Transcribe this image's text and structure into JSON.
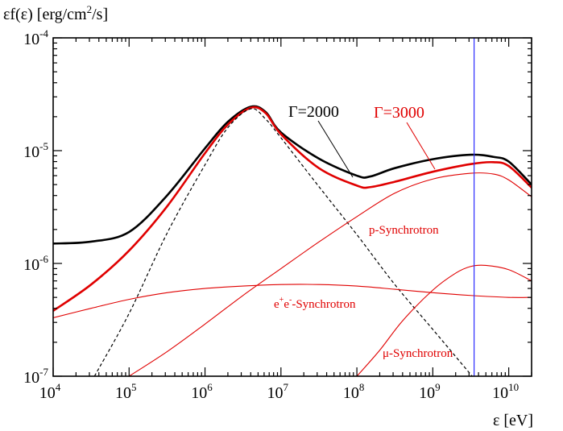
{
  "chart_data": {
    "type": "line",
    "title": "",
    "ylabel": {
      "prefix": "εf(ε) [erg/cm",
      "sup": "2",
      "suffix": "/s]"
    },
    "xlabel": "ε [eV]",
    "xscale": "log",
    "yscale": "log",
    "xlim": [
      10000,
      20000000000
    ],
    "ylim": [
      1e-07,
      0.0001
    ],
    "grid": false,
    "x_ticks": [
      {
        "base": "10",
        "exp": "4"
      },
      {
        "base": "10",
        "exp": "5"
      },
      {
        "base": "10",
        "exp": "6"
      },
      {
        "base": "10",
        "exp": "7"
      },
      {
        "base": "10",
        "exp": "8"
      },
      {
        "base": "10",
        "exp": "9"
      },
      {
        "base": "10",
        "exp": "10"
      }
    ],
    "y_ticks": [
      {
        "base": "10",
        "exp": "-7"
      },
      {
        "base": "10",
        "exp": "-6"
      },
      {
        "base": "10",
        "exp": "-5"
      },
      {
        "base": "10",
        "exp": "-4"
      }
    ],
    "vertical_marker_x": 3500000000,
    "annotations": {
      "gamma2000": "Γ=2000",
      "gamma3000": "Γ=3000",
      "p_sync": "p-Synchrotron",
      "e_sync": {
        "prefix": "e",
        "sup1": "+",
        "mid": "e",
        "sup2": "-",
        "suffix": "-Synchrotron"
      },
      "mu_sync": "μ-Synchrotron"
    },
    "series": [
      {
        "id": "total_2000",
        "color": "#000000",
        "style": "solid",
        "width": 2.6,
        "points": [
          [
            10000,
            1.5e-06
          ],
          [
            31600,
            1.56e-06
          ],
          [
            100000,
            1.9e-06
          ],
          [
            316000,
            4e-06
          ],
          [
            1000000,
            1.05e-05
          ],
          [
            2000000,
            1.8e-05
          ],
          [
            4000000,
            2.45e-05
          ],
          [
            6300000,
            2.2e-05
          ],
          [
            10000000,
            1.45e-05
          ],
          [
            31600000,
            8.5e-06
          ],
          [
            100000000,
            6e-06
          ],
          [
            150000000,
            5.9e-06
          ],
          [
            316000000,
            7e-06
          ],
          [
            1000000000,
            8.4e-06
          ],
          [
            3160000000,
            9.2e-06
          ],
          [
            6300000000,
            8.8e-06
          ],
          [
            10000000000,
            8e-06
          ],
          [
            20000000000,
            5e-06
          ]
        ]
      },
      {
        "id": "total_3000",
        "color": "#e00000",
        "style": "solid",
        "width": 2.6,
        "points": [
          [
            10000,
            3.8e-07
          ],
          [
            31600,
            6.5e-07
          ],
          [
            100000,
            1.3e-06
          ],
          [
            316000,
            3.2e-06
          ],
          [
            1000000,
            9.5e-06
          ],
          [
            2000000,
            1.7e-05
          ],
          [
            4000000,
            2.4e-05
          ],
          [
            6300000,
            2.15e-05
          ],
          [
            10000000,
            1.4e-05
          ],
          [
            31600000,
            7e-06
          ],
          [
            100000000,
            4.9e-06
          ],
          [
            150000000,
            4.75e-06
          ],
          [
            316000000,
            5.3e-06
          ],
          [
            1000000000,
            6.5e-06
          ],
          [
            3160000000,
            7.6e-06
          ],
          [
            6300000000,
            7.9e-06
          ],
          [
            10000000000,
            7.3e-06
          ],
          [
            20000000000,
            4.7e-06
          ]
        ]
      },
      {
        "id": "sync_dashed",
        "color": "#000000",
        "style": "dashed",
        "width": 1.2,
        "points": [
          [
            35000,
            1e-07
          ],
          [
            100000,
            3.6e-07
          ],
          [
            316000,
            1.85e-06
          ],
          [
            1000000,
            7.5e-06
          ],
          [
            2000000,
            1.6e-05
          ],
          [
            4000000,
            2.35e-05
          ],
          [
            6300000,
            1.9e-05
          ],
          [
            10000000,
            1.3e-05
          ],
          [
            31600000,
            4.8e-06
          ],
          [
            100000000,
            1.8e-06
          ],
          [
            316000000,
            6.5e-07
          ],
          [
            1000000000,
            2.6e-07
          ],
          [
            3300000000,
            1e-07
          ]
        ]
      },
      {
        "id": "p_synchrotron",
        "color": "#e00000",
        "style": "solid",
        "width": 1.1,
        "points": [
          [
            100000,
            1e-07
          ],
          [
            316000,
            1.65e-07
          ],
          [
            1000000,
            2.9e-07
          ],
          [
            3160000,
            5.2e-07
          ],
          [
            10000000,
            9e-07
          ],
          [
            31600000,
            1.55e-06
          ],
          [
            100000000,
            2.6e-06
          ],
          [
            316000000,
            4.2e-06
          ],
          [
            1000000000,
            5.6e-06
          ],
          [
            3160000000,
            6.3e-06
          ],
          [
            6300000000,
            6.2e-06
          ],
          [
            10000000000,
            5.5e-06
          ],
          [
            20000000000,
            3.9e-06
          ]
        ]
      },
      {
        "id": "e_synchrotron",
        "color": "#e00000",
        "style": "solid",
        "width": 1.1,
        "points": [
          [
            10000,
            3.3e-07
          ],
          [
            31600,
            4e-07
          ],
          [
            100000,
            4.8e-07
          ],
          [
            316000,
            5.5e-07
          ],
          [
            1000000,
            6e-07
          ],
          [
            3160000,
            6.3e-07
          ],
          [
            10000000,
            6.5e-07
          ],
          [
            31600000,
            6.5e-07
          ],
          [
            100000000,
            6.3e-07
          ],
          [
            316000000,
            5.9e-07
          ],
          [
            1000000000,
            5.5e-07
          ],
          [
            3160000000,
            5.2e-07
          ],
          [
            10000000000,
            5e-07
          ],
          [
            20000000000,
            5e-07
          ]
        ]
      },
      {
        "id": "mu_synchrotron",
        "color": "#e00000",
        "style": "solid",
        "width": 1.1,
        "points": [
          [
            100000000,
            1e-07
          ],
          [
            200000000,
            1.7e-07
          ],
          [
            400000000,
            3.1e-07
          ],
          [
            1000000000,
            5.8e-07
          ],
          [
            2000000000,
            8.2e-07
          ],
          [
            3160000000,
            9.4e-07
          ],
          [
            5000000000,
            9.6e-07
          ],
          [
            10000000000,
            8.8e-07
          ],
          [
            20000000000,
            7e-07
          ]
        ]
      }
    ]
  }
}
